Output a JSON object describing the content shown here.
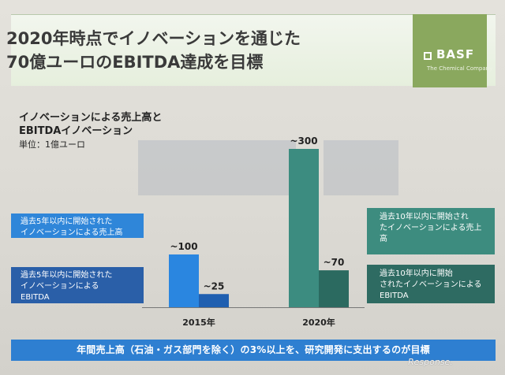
{
  "header": {
    "title_lines": [
      "2020年時点でイノベーションを通じた",
      "70億ユーロのEBITDA達成を目標"
    ]
  },
  "logo": {
    "text": "BASF",
    "tagline": "The Chemical Company"
  },
  "subtitle": {
    "lines": [
      "イノベーションによる売上高と",
      "EBITDAイノベーション"
    ],
    "unit": "単位：1億ユーロ"
  },
  "legend_left": {
    "sales": [
      "過去5年以内に開始された",
      "イノベーションによる売上高"
    ],
    "ebitda": [
      "過去5年以内に開始された",
      "イノベーションによる",
      "EBITDA"
    ]
  },
  "legend_right": {
    "sales": [
      "過去10年以内に開始され",
      "たイノベーションによる売上",
      "高"
    ],
    "ebitda": [
      "過去10年以内に開始",
      "されたイノベーションによる",
      "EBITDA"
    ]
  },
  "footer": {
    "text": "年間売上高（石油・ガス部門を除く）の3%以上を、研究開発に支出するのが目標"
  },
  "watermark": {
    "text": "Response."
  },
  "colors": {
    "sales_2015": "#2a86e0",
    "ebitda_2015": "#1f5fb0",
    "sales_2020": "#3c8c80",
    "ebitda_2020": "#2b6a60"
  },
  "chart_data": {
    "type": "bar",
    "title": "イノベーションによる売上高とEBITDAイノベーション",
    "ylabel": "単位：1億ユーロ",
    "categories": [
      "2015年",
      "2020年"
    ],
    "series": [
      {
        "name": "Sales from innovations",
        "values": [
          100,
          300
        ],
        "labels": [
          "~100",
          "~300"
        ]
      },
      {
        "name": "EBITDA from innovations",
        "values": [
          25,
          70
        ],
        "labels": [
          "~25",
          "~70"
        ]
      }
    ],
    "ylim": [
      0,
      300
    ],
    "grid": false
  }
}
